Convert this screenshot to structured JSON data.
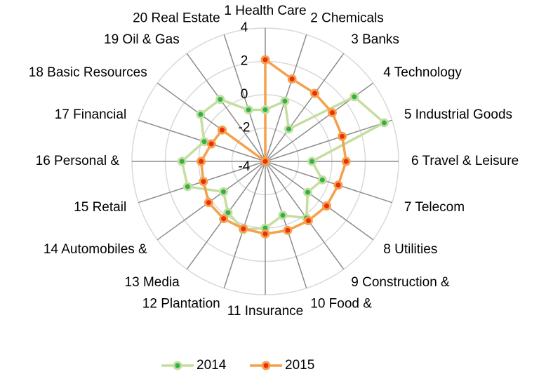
{
  "chart_data": {
    "type": "radar",
    "categories": [
      "1 Health Care",
      "2 Chemicals",
      "3 Banks",
      "4 Technology",
      "5 Industrial Goods",
      "6 Travel & Leisure",
      "7 Telecom",
      "8 Utilities",
      "9 Construction &",
      "10 Food &",
      "11 Insurance",
      "12 Plantation",
      "13 Media",
      "14 Automobiles &",
      "15 Retail",
      "16 Personal &",
      "17 Financial",
      "18 Basic Resources",
      "19 Oil & Gas",
      "20 Real Estate"
    ],
    "series": [
      {
        "name": "2014",
        "color": "#c5dea0",
        "marker_color": "#2fb24a",
        "values": [
          -0.9,
          -0.2,
          -1.6,
          2.6,
          3.5,
          -1.2,
          -0.4,
          -0.85,
          0.2,
          -0.6,
          0,
          0.3,
          -0.2,
          -0.9,
          0.9,
          1.0,
          -0.15,
          0.8,
          0.6,
          -0.75
        ]
      },
      {
        "name": "2015",
        "color": "#f5a04a",
        "marker_color": "#e8300e",
        "values": [
          2.1,
          1.2,
          1.05,
          0.97,
          0.85,
          0.85,
          0.6,
          0.55,
          0.4,
          0.35,
          0.35,
          0.25,
          0.25,
          0.2,
          -0.1,
          -0.15,
          -0.6,
          -0.8,
          -4,
          -4
        ]
      }
    ],
    "rlim": [
      -4,
      4
    ],
    "rticks": [
      -4,
      -2,
      0,
      2,
      4
    ],
    "grid": true,
    "legend": "bottom"
  }
}
